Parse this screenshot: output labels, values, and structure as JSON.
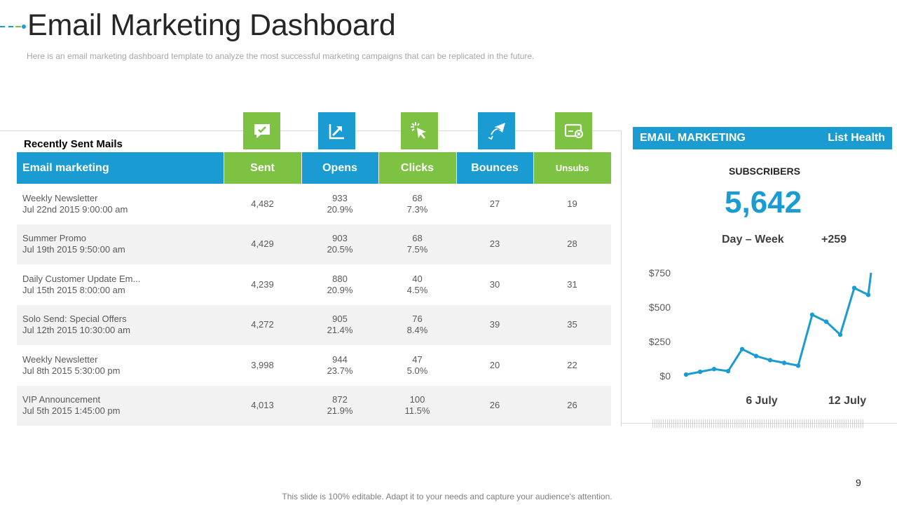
{
  "header": {
    "title": "Email Marketing Dashboard",
    "subtitle": "Here is an email marketing dashboard template to analyze the most successful marketing campaigns that can be replicated in the future."
  },
  "mails": {
    "section_label": "Recently Sent Mails",
    "columns": [
      "Email marketing",
      "Sent",
      "Opens",
      "Clicks",
      "Bounces",
      "Unsubs"
    ],
    "column_icons": [
      "chat-check-icon",
      "chart-arrow-icon",
      "cursor-click-icon",
      "bounce-mail-icon",
      "unsubscribe-icon"
    ],
    "rows": [
      {
        "name": "Weekly Newsletter",
        "date": "Jul 22nd 2015 9:00:00 am",
        "sent": "4,482",
        "opens": "933",
        "opens_pct": "20.9%",
        "clicks": "68",
        "clicks_pct": "7.3%",
        "bounces": "27",
        "unsubs": "19"
      },
      {
        "name": "Summer Promo",
        "date": "Jul 19th 2015 9:50:00 am",
        "sent": "4,429",
        "opens": "903",
        "opens_pct": "20.5%",
        "clicks": "68",
        "clicks_pct": "7.5%",
        "bounces": "23",
        "unsubs": "28"
      },
      {
        "name": "Daily Customer Update Em...",
        "date": "Jul 15th 2015 8:00:00 am",
        "sent": "4,239",
        "opens": "880",
        "opens_pct": "20.9%",
        "clicks": "40",
        "clicks_pct": "4.5%",
        "bounces": "30",
        "unsubs": "31"
      },
      {
        "name": "Solo Send: Special Offers",
        "date": "Jul 12th 2015 10:30:00 am",
        "sent": "4,272",
        "opens": "905",
        "opens_pct": "21.4%",
        "clicks": "76",
        "clicks_pct": "8.4%",
        "bounces": "39",
        "unsubs": "35"
      },
      {
        "name": "Weekly Newsletter",
        "date": "Jul 8th 2015 5:30:00 pm",
        "sent": "3,998",
        "opens": "944",
        "opens_pct": "23.7%",
        "clicks": "47",
        "clicks_pct": "5.0%",
        "bounces": "20",
        "unsubs": "22"
      },
      {
        "name": "VIP Announcement",
        "date": "Jul 5th 2015 1:45:00 pm",
        "sent": "4,013",
        "opens": "872",
        "opens_pct": "21.9%",
        "clicks": "100",
        "clicks_pct": "11.5%",
        "bounces": "26",
        "unsubs": "26"
      }
    ]
  },
  "list_health": {
    "header_left": "EMAIL MARKETING",
    "header_right": "List Health",
    "subscribers_label": "SUBSCRIBERS",
    "subscribers_value": "5,642",
    "period_label": "Day – Week",
    "period_change": "+259"
  },
  "chart_data": {
    "type": "line",
    "series_color": "#1a9bd1",
    "y_ticks": [
      "$750",
      "$500",
      "$250",
      "$0"
    ],
    "y_tick_values": [
      750,
      500,
      250,
      0
    ],
    "x_ticks": [
      "6 July",
      "12 July"
    ],
    "ylim": [
      0,
      750
    ],
    "values": [
      10,
      30,
      50,
      35,
      195,
      145,
      115,
      95,
      75,
      445,
      395,
      300,
      640,
      590,
      750
    ],
    "grid": false
  },
  "footer": {
    "page_number": "9",
    "note": "This slide is 100% editable. Adapt it to your needs and capture your audience's attention."
  }
}
